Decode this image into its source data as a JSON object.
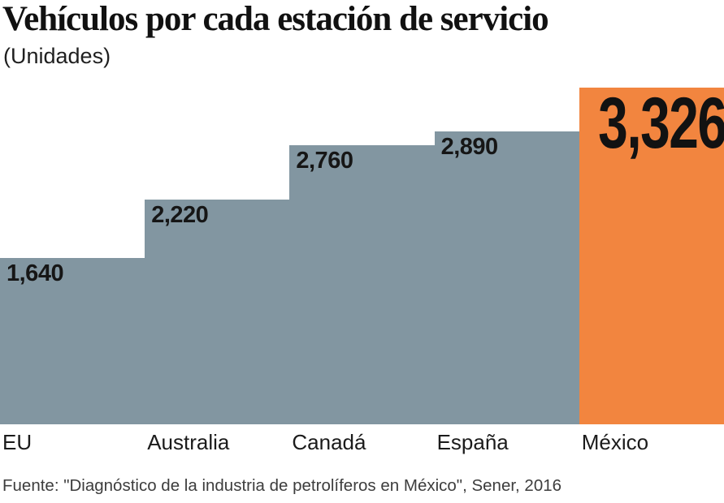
{
  "chart_data": {
    "type": "bar",
    "title": "Vehículos por cada estación de servicio",
    "subtitle": "(Unidades)",
    "categories": [
      "EU",
      "Australia",
      "Canadá",
      "España",
      "México"
    ],
    "values": [
      1640,
      2220,
      2760,
      2890,
      3326
    ],
    "value_labels": [
      "1,640",
      "2,220",
      "2,760",
      "2,890",
      "3,326"
    ],
    "highlight_index": 4,
    "ylim": [
      0,
      3326
    ],
    "bar_color": "#8296a1",
    "highlight_color": "#f2853f",
    "label_color": "#161616",
    "grid": false,
    "legend": false,
    "layout": "step-bars-adjacent, value labels inside bar tops, category labels left-aligned under bars"
  },
  "source": "Fuente: \"Diagnóstico de la industria de petrolíferos en México\", Sener, 2016"
}
